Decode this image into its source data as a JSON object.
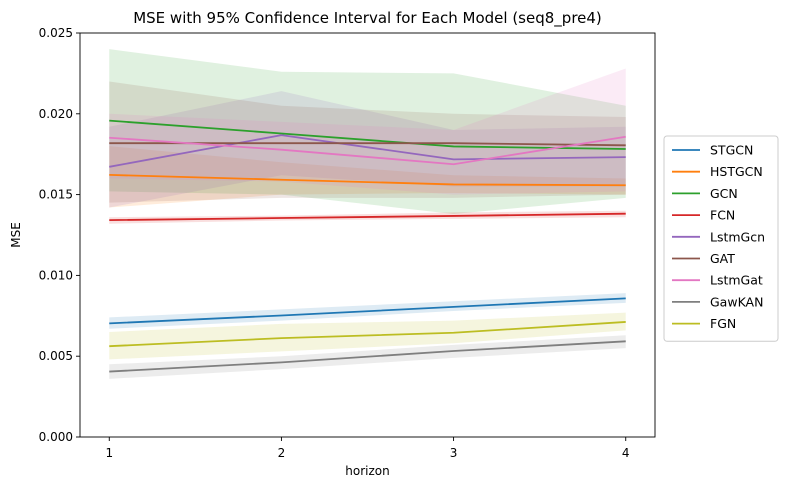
{
  "chart_data": {
    "type": "line",
    "title": "MSE with 95% Confidence Interval for Each Model (seq8_pre4)",
    "xlabel": "horizon",
    "ylabel": "MSE",
    "x": [
      1,
      2,
      3,
      4
    ],
    "x_ticks": [
      "1",
      "2",
      "3",
      "4"
    ],
    "ylim": [
      0,
      0.025
    ],
    "y_ticks": [
      "0.000",
      "0.005",
      "0.010",
      "0.015",
      "0.020",
      "0.025"
    ],
    "y_tick_values": [
      0,
      0.005,
      0.01,
      0.015,
      0.02,
      0.025
    ],
    "grid": false,
    "legend_position": "right-outside",
    "series": [
      {
        "name": "STGCN",
        "color": "#1f77b4",
        "values": [
          0.00703,
          0.00752,
          0.00805,
          0.00858
        ],
        "lower": [
          0.0067,
          0.0072,
          0.0078,
          0.0083
        ],
        "upper": [
          0.0074,
          0.0079,
          0.0084,
          0.0089
        ]
      },
      {
        "name": "HSTGCN",
        "color": "#ff7f0e",
        "values": [
          0.01622,
          0.01592,
          0.01563,
          0.01558
        ],
        "lower": [
          0.0142,
          0.015,
          0.0151,
          0.015
        ],
        "upper": [
          0.018,
          0.017,
          0.0162,
          0.016
        ]
      },
      {
        "name": "GCN",
        "color": "#2ca02c",
        "values": [
          0.01958,
          0.01878,
          0.01798,
          0.01782
        ],
        "lower": [
          0.0152,
          0.015,
          0.0138,
          0.0148
        ],
        "upper": [
          0.024,
          0.0226,
          0.0225,
          0.0205
        ]
      },
      {
        "name": "FCN",
        "color": "#d62728",
        "values": [
          0.01342,
          0.01355,
          0.01368,
          0.01382
        ],
        "lower": [
          0.0132,
          0.0134,
          0.0135,
          0.0136
        ],
        "upper": [
          0.0136,
          0.0137,
          0.0139,
          0.014
        ]
      },
      {
        "name": "LstmGcn",
        "color": "#9467bd",
        "values": [
          0.01672,
          0.01868,
          0.01718,
          0.01732
        ],
        "lower": [
          0.0142,
          0.0162,
          0.0155,
          0.0155
        ],
        "upper": [
          0.0192,
          0.0214,
          0.019,
          0.0192
        ]
      },
      {
        "name": "GAT",
        "color": "#8c564b",
        "values": [
          0.01818,
          0.01818,
          0.01818,
          0.01805
        ],
        "lower": [
          0.0145,
          0.0148,
          0.0148,
          0.015
        ],
        "upper": [
          0.022,
          0.0205,
          0.02,
          0.0198
        ]
      },
      {
        "name": "LstmGat",
        "color": "#e377c2",
        "values": [
          0.01852,
          0.01778,
          0.01688,
          0.01858
        ],
        "lower": [
          0.016,
          0.0158,
          0.015,
          0.0152
        ],
        "upper": [
          0.02,
          0.0195,
          0.019,
          0.0228
        ]
      },
      {
        "name": "GawKAN",
        "color": "#7f7f7f",
        "values": [
          0.00405,
          0.00462,
          0.00532,
          0.00592
        ],
        "lower": [
          0.0036,
          0.0042,
          0.0049,
          0.0055
        ],
        "upper": [
          0.0045,
          0.005,
          0.0057,
          0.0063
        ]
      },
      {
        "name": "FGN",
        "color": "#bcbd22",
        "values": [
          0.00562,
          0.00612,
          0.00645,
          0.00712
        ],
        "lower": [
          0.0048,
          0.0053,
          0.0058,
          0.0066
        ],
        "upper": [
          0.0065,
          0.007,
          0.0072,
          0.0077
        ]
      }
    ]
  }
}
